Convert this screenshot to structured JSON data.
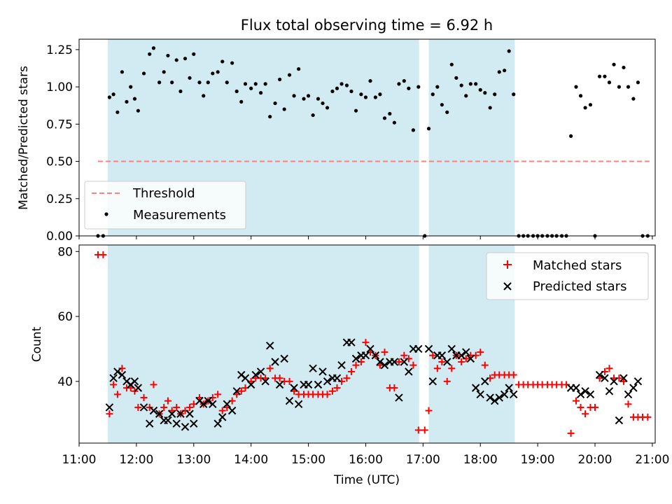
{
  "title": "Flux total observing time = 6.92 h",
  "chart_data": [
    {
      "type": "scatter",
      "panel": "top",
      "title": "Flux total observing time = 6.92 h",
      "xlabel": "",
      "ylabel": "Matched/Predicted stars",
      "ylim": [
        0,
        1.32
      ],
      "yticks": [
        0.0,
        0.25,
        0.5,
        0.75,
        1.0,
        1.25
      ],
      "ytick_labels": [
        "0.00",
        "0.25",
        "0.50",
        "0.75",
        "1.00",
        "1.25"
      ],
      "xlim": [
        11.0,
        21.05
      ],
      "threshold": {
        "label": "Threshold",
        "value": 0.5,
        "x_range": [
          11.33,
          20.95
        ],
        "color": "#ff8080"
      },
      "shaded_intervals": [
        [
          11.5,
          16.93
        ],
        [
          17.1,
          18.6
        ]
      ],
      "shade_color": "#add8e6",
      "legend_position": "lower-left",
      "legend": [
        "Threshold",
        "Measurements"
      ],
      "series": [
        {
          "name": "Measurements",
          "color": "#000000",
          "x": [
            11.33,
            11.42,
            11.53,
            11.6,
            11.67,
            11.75,
            11.83,
            11.9,
            11.97,
            12.03,
            12.13,
            12.23,
            12.3,
            12.4,
            12.48,
            12.55,
            12.62,
            12.7,
            12.77,
            12.85,
            12.93,
            13.0,
            13.1,
            13.17,
            13.25,
            13.33,
            13.42,
            13.5,
            13.58,
            13.67,
            13.75,
            13.83,
            13.9,
            14.0,
            14.08,
            14.17,
            14.25,
            14.33,
            14.42,
            14.5,
            14.58,
            14.67,
            14.75,
            14.83,
            14.92,
            15.0,
            15.08,
            15.17,
            15.25,
            15.33,
            15.42,
            15.5,
            15.58,
            15.67,
            15.75,
            15.83,
            15.92,
            16.0,
            16.08,
            16.17,
            16.25,
            16.33,
            16.42,
            16.5,
            16.58,
            16.67,
            16.75,
            16.83,
            16.92,
            17.03,
            17.1,
            17.17,
            17.25,
            17.33,
            17.42,
            17.5,
            17.58,
            17.67,
            17.75,
            17.83,
            17.92,
            18.0,
            18.08,
            18.17,
            18.25,
            18.33,
            18.42,
            18.5,
            18.58,
            18.67,
            18.75,
            18.83,
            18.92,
            19.0,
            19.08,
            19.17,
            19.25,
            19.33,
            19.42,
            19.5,
            19.58,
            19.67,
            19.75,
            19.83,
            19.92,
            20.0,
            20.08,
            20.17,
            20.25,
            20.33,
            20.42,
            20.5,
            20.58,
            20.67,
            20.75,
            20.83,
            20.92
          ],
          "y": [
            0.0,
            0.0,
            0.93,
            0.95,
            0.83,
            1.1,
            0.9,
            1.0,
            0.92,
            0.84,
            1.09,
            1.22,
            1.26,
            1.03,
            1.1,
            1.21,
            1.03,
            1.18,
            0.97,
            1.19,
            1.06,
            1.22,
            1.03,
            0.94,
            1.03,
            1.09,
            1.1,
            1.17,
            1.03,
            1.16,
            0.97,
            0.9,
            1.02,
            0.99,
            1.02,
            0.96,
            1.02,
            0.8,
            0.89,
            1.05,
            0.85,
            1.08,
            0.94,
            1.12,
            0.92,
            0.94,
            0.81,
            0.92,
            0.89,
            0.86,
            0.97,
            0.99,
            1.02,
            1.01,
            0.97,
            0.84,
            0.95,
            0.93,
            1.04,
            0.93,
            0.95,
            0.79,
            0.82,
            0.76,
            1.02,
            1.04,
            0.99,
            0.71,
            1.0,
            0.0,
            0.72,
            0.95,
            1.0,
            0.88,
            0.83,
            1.15,
            1.06,
            1.01,
            0.94,
            1.02,
            1.02,
            0.98,
            0.96,
            0.86,
            0.95,
            1.1,
            1.11,
            1.24,
            0.95,
            0.0,
            0.0,
            0.0,
            0.0,
            0.0,
            0.0,
            0.0,
            0.0,
            0.0,
            0.0,
            0.0,
            0.67,
            1.0,
            0.94,
            0.86,
            0.88,
            0.0,
            1.07,
            1.07,
            1.03,
            1.15,
            1.0,
            1.13,
            1.0,
            0.92,
            1.03,
            0.0,
            0.0
          ]
        }
      ]
    },
    {
      "type": "scatter",
      "panel": "bottom",
      "title": "",
      "xlabel": "Time (UTC)",
      "ylabel": "Count",
      "ylim": [
        21,
        82
      ],
      "yticks": [
        40,
        60,
        80
      ],
      "ytick_labels": [
        "40",
        "60",
        "80"
      ],
      "xlim": [
        11.0,
        21.05
      ],
      "xticks": [
        11,
        12,
        13,
        14,
        15,
        16,
        17,
        18,
        19,
        20,
        21
      ],
      "xtick_labels": [
        "11:00",
        "12:00",
        "13:00",
        "14:00",
        "15:00",
        "16:00",
        "17:00",
        "18:00",
        "19:00",
        "20:00",
        "21:00"
      ],
      "shaded_intervals": [
        [
          11.5,
          16.93
        ],
        [
          17.1,
          18.6
        ]
      ],
      "legend_position": "top-right",
      "legend": [
        "Matched stars",
        "Predicted stars"
      ],
      "series": [
        {
          "name": "Matched stars",
          "marker": "plus",
          "color": "#ff0000",
          "x": [
            11.33,
            11.42,
            11.53,
            11.6,
            11.67,
            11.75,
            11.83,
            11.9,
            11.97,
            12.03,
            12.13,
            12.23,
            12.3,
            12.4,
            12.48,
            12.55,
            12.62,
            12.7,
            12.77,
            12.85,
            12.93,
            13.0,
            13.1,
            13.17,
            13.25,
            13.33,
            13.42,
            13.5,
            13.58,
            13.67,
            13.75,
            13.83,
            13.9,
            14.0,
            14.08,
            14.17,
            14.25,
            14.33,
            14.42,
            14.5,
            14.58,
            14.67,
            14.75,
            14.83,
            14.92,
            15.0,
            15.08,
            15.17,
            15.25,
            15.33,
            15.42,
            15.5,
            15.58,
            15.67,
            15.75,
            15.83,
            15.92,
            16.0,
            16.08,
            16.17,
            16.25,
            16.33,
            16.42,
            16.5,
            16.58,
            16.67,
            16.75,
            16.83,
            16.92,
            17.03,
            17.1,
            17.17,
            17.25,
            17.33,
            17.42,
            17.5,
            17.58,
            17.67,
            17.75,
            17.83,
            17.92,
            18.0,
            18.08,
            18.17,
            18.25,
            18.33,
            18.42,
            18.5,
            18.58,
            18.67,
            18.75,
            18.83,
            18.92,
            19.0,
            19.08,
            19.17,
            19.25,
            19.33,
            19.42,
            19.5,
            19.58,
            19.67,
            19.75,
            19.83,
            19.92,
            20.0,
            20.08,
            20.17,
            20.25,
            20.33,
            20.42,
            20.5,
            20.58,
            20.67,
            20.75,
            20.83,
            20.92
          ],
          "y": [
            79,
            79,
            30,
            39,
            36,
            44,
            38,
            38,
            37,
            32,
            35,
            32,
            39,
            30,
            32,
            34,
            31,
            32,
            30,
            31,
            32,
            33,
            35,
            33,
            34,
            35,
            36,
            31,
            32,
            34,
            36,
            37,
            38,
            40,
            41,
            41,
            41,
            44,
            41,
            41,
            40,
            40,
            37,
            36,
            36,
            36,
            36,
            36,
            36,
            36,
            37,
            38,
            40,
            41,
            43,
            45,
            46,
            52,
            49,
            48,
            45,
            49,
            38,
            38,
            46,
            48,
            47,
            45,
            25,
            25,
            31,
            48,
            44,
            46,
            40,
            44,
            48,
            46,
            47,
            48,
            48,
            49,
            45,
            41,
            42,
            42,
            42,
            42,
            42,
            39,
            39,
            39,
            39,
            39,
            39,
            39,
            39,
            39,
            39,
            39,
            24,
            34,
            32,
            30,
            32,
            32,
            41,
            43,
            44,
            41,
            41,
            40,
            33,
            29,
            29,
            29,
            29
          ]
        },
        {
          "name": "Predicted stars",
          "marker": "x",
          "color": "#000000",
          "x": [
            11.53,
            11.6,
            11.67,
            11.75,
            11.83,
            11.9,
            11.97,
            12.03,
            12.13,
            12.23,
            12.3,
            12.4,
            12.48,
            12.55,
            12.62,
            12.7,
            12.77,
            12.85,
            12.93,
            13.0,
            13.1,
            13.17,
            13.25,
            13.33,
            13.42,
            13.5,
            13.58,
            13.67,
            13.75,
            13.83,
            13.9,
            14.0,
            14.08,
            14.17,
            14.25,
            14.33,
            14.42,
            14.5,
            14.58,
            14.67,
            14.75,
            14.83,
            14.92,
            15.0,
            15.08,
            15.17,
            15.25,
            15.33,
            15.42,
            15.5,
            15.58,
            15.67,
            15.75,
            15.83,
            15.92,
            16.0,
            16.08,
            16.17,
            16.25,
            16.33,
            16.42,
            16.5,
            16.58,
            16.67,
            16.75,
            16.83,
            16.92,
            17.1,
            17.17,
            17.25,
            17.33,
            17.42,
            17.5,
            17.58,
            17.67,
            17.75,
            17.83,
            17.92,
            18.0,
            18.08,
            18.17,
            18.25,
            18.33,
            18.42,
            18.5,
            18.58,
            19.58,
            19.67,
            19.75,
            19.83,
            19.92,
            20.08,
            20.17,
            20.25,
            20.33,
            20.42,
            20.5,
            20.58,
            20.67,
            20.75
          ],
          "y": [
            32,
            41,
            43,
            42,
            40,
            39,
            40,
            38,
            32,
            27,
            31,
            30,
            28,
            28,
            30,
            27,
            30,
            26,
            30,
            27,
            34,
            33,
            34,
            33,
            27,
            29,
            33,
            31,
            37,
            42,
            41,
            39,
            42,
            43,
            40,
            51,
            46,
            39,
            47,
            34,
            38,
            33,
            39,
            39,
            44,
            39,
            43,
            40,
            41,
            41,
            45,
            52,
            52,
            47,
            48,
            48,
            50,
            48,
            46,
            45,
            46,
            46,
            35,
            46,
            43,
            50,
            50,
            50,
            40,
            48,
            48,
            46,
            50,
            48,
            48,
            49,
            47,
            38,
            36,
            40,
            35,
            34,
            35,
            36,
            38,
            36,
            38,
            38,
            36,
            37,
            36,
            42,
            41,
            37,
            40,
            28,
            41,
            36,
            38,
            40
          ]
        }
      ]
    }
  ]
}
